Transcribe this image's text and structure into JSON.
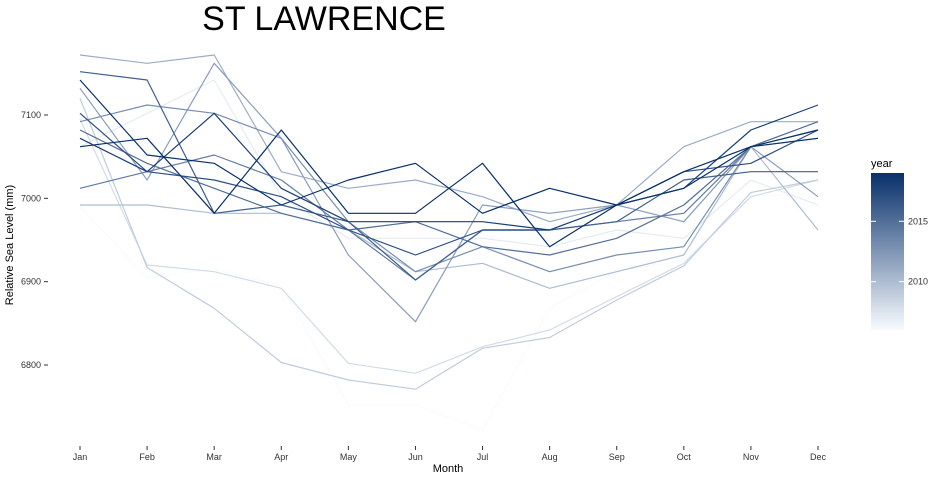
{
  "chart_data": {
    "type": "line",
    "title": "ST LAWRENCE",
    "xlabel": "Month",
    "ylabel": "Relative Sea Level (mm)",
    "categories": [
      "Jan",
      "Feb",
      "Mar",
      "Apr",
      "May",
      "Jun",
      "Jul",
      "Aug",
      "Sep",
      "Oct",
      "Nov",
      "Dec"
    ],
    "ylim": [
      6710,
      7190
    ],
    "yticks": [
      6800,
      6900,
      7000,
      7100
    ],
    "legend": {
      "title": "year",
      "position": "right",
      "range": [
        2006,
        2019
      ],
      "ticks": [
        2010,
        2015
      ],
      "color_low": "#f7fbff",
      "color_high": "#08306b"
    },
    "series": [
      {
        "year": 2006,
        "values": [
          6990,
          6905,
          6915,
          6895,
          6752,
          6752,
          6722,
          6868,
          6913,
          6925,
          7003,
          7005
        ]
      },
      {
        "year": 2007,
        "values": [
          7062,
          7102,
          7142,
          7002,
          6952,
          6952,
          6952,
          6942,
          6962,
          6952,
          7022,
          6992
        ]
      },
      {
        "year": 2008,
        "values": [
          7095,
          6920,
          6912,
          6892,
          6802,
          6790,
          6822,
          6842,
          6882,
          6922,
          7002,
          7022
        ]
      },
      {
        "year": 2009,
        "values": [
          7120,
          6917,
          6868,
          6803,
          6782,
          6771,
          6820,
          6833,
          6878,
          6919,
          7007,
          7022
        ]
      },
      {
        "year": 2010,
        "values": [
          6992,
          6992,
          6982,
          6982,
          6962,
          6912,
          6922,
          6892,
          6912,
          6932,
          7062,
          6962
        ]
      },
      {
        "year": 2011,
        "values": [
          7172,
          7162,
          7172,
          7032,
          7012,
          7022,
          7002,
          6972,
          6992,
          7062,
          7092,
          7092
        ]
      },
      {
        "year": 2012,
        "values": [
          7132,
          7022,
          7162,
          7072,
          6932,
          6852,
          6992,
          6982,
          6992,
          6972,
          7062,
          7002
        ]
      },
      {
        "year": 2013,
        "values": [
          7092,
          7112,
          7102,
          7072,
          6972,
          6912,
          6942,
          6912,
          6932,
          6942,
          7062,
          7072
        ]
      },
      {
        "year": 2014,
        "values": [
          7012,
          7032,
          7052,
          7022,
          6962,
          6902,
          6962,
          6962,
          6972,
          6982,
          7062,
          7082
        ]
      },
      {
        "year": 2015,
        "values": [
          7082,
          7042,
          7012,
          6982,
          6962,
          6972,
          6942,
          6932,
          6952,
          6992,
          7062,
          7092
        ]
      },
      {
        "year": 2016,
        "values": [
          7152,
          7142,
          6982,
          6992,
          6972,
          6902,
          6962,
          6962,
          6972,
          7022,
          7032,
          7032
        ]
      },
      {
        "year": 2017,
        "values": [
          7102,
          7032,
          7022,
          7002,
          6962,
          6932,
          6962,
          6962,
          6992,
          7032,
          7042,
          7082
        ]
      },
      {
        "year": 2018,
        "values": [
          7072,
          7032,
          7102,
          7012,
          6972,
          6972,
          6972,
          6962,
          6992,
          7012,
          7082,
          7112
        ]
      },
      {
        "year": 2019,
        "values": [
          7142,
          7052,
          7042,
          6992,
          7022,
          7042,
          6982,
          7012,
          6992,
          7012,
          7062,
          7082
        ]
      },
      {
        "year": 2019,
        "values": [
          7062,
          7072,
          6982,
          7082,
          6982,
          6982,
          7042,
          6942,
          6992,
          7032,
          7062,
          7072
        ]
      }
    ]
  }
}
